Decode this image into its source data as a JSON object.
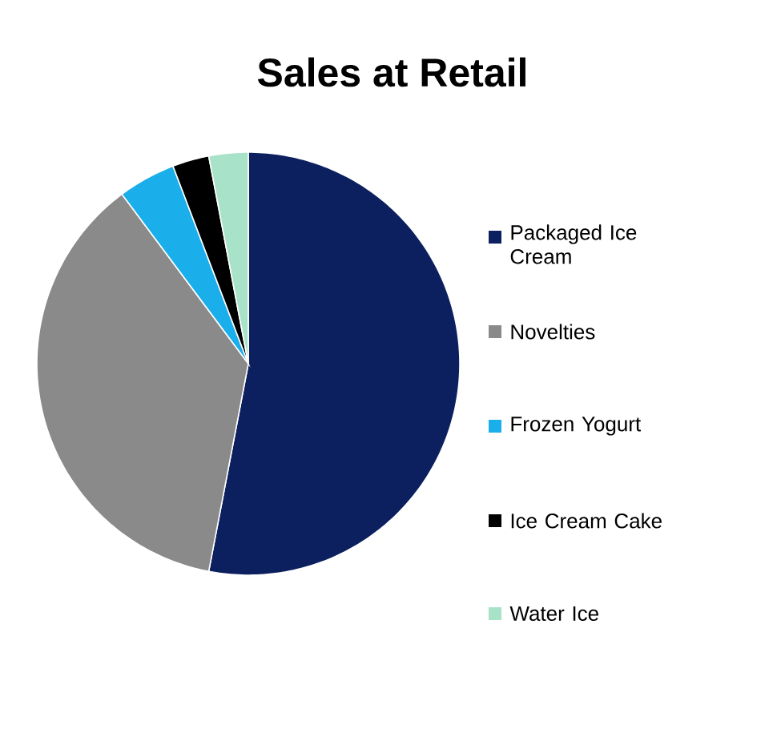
{
  "chart_data": {
    "type": "pie",
    "title": "Sales at Retail",
    "categories": [
      "Packaged Ice Cream",
      "Novelties",
      "Frozen Yogurt",
      "Ice Cream Cake",
      "Water Ice"
    ],
    "values": [
      53,
      36.8,
      4.4,
      2.8,
      3.0
    ],
    "colors": [
      "#0c1f5e",
      "#8a8a8a",
      "#1aaeea",
      "#000000",
      "#a8e2c9"
    ],
    "legend": "right"
  }
}
